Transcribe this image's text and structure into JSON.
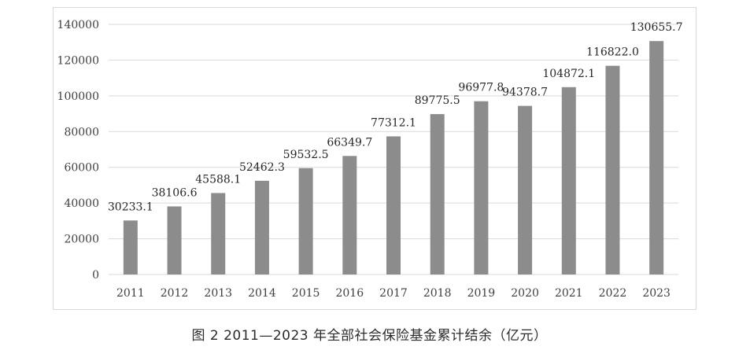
{
  "chart_data": {
    "type": "bar",
    "categories": [
      "2011",
      "2012",
      "2013",
      "2014",
      "2015",
      "2016",
      "2017",
      "2018",
      "2019",
      "2020",
      "2021",
      "2022",
      "2023"
    ],
    "values": [
      30233.1,
      38106.6,
      45588.1,
      52462.3,
      59532.5,
      66349.7,
      77312.1,
      89775.5,
      96977.8,
      94378.7,
      104872.1,
      116822.0,
      130655.7
    ],
    "value_labels": [
      "30233.1",
      "38106.6",
      "45588.1",
      "52462.3",
      "59532.5",
      "66349.7",
      "77312.1",
      "89775.5",
      "96977.8",
      "94378.7",
      "104872.1",
      "116822.0",
      "130655.7"
    ],
    "y_ticks": [
      "0",
      "20000",
      "40000",
      "60000",
      "80000",
      "100000",
      "120000",
      "140000"
    ],
    "ylim": [
      0,
      140000
    ],
    "grid": true,
    "bar_color": "#8c8c8c",
    "grid_color": "#d9d9d9",
    "legend": "none"
  },
  "caption": "图 2   2011—2023 年全部社会保险基金累计结余（亿元）"
}
